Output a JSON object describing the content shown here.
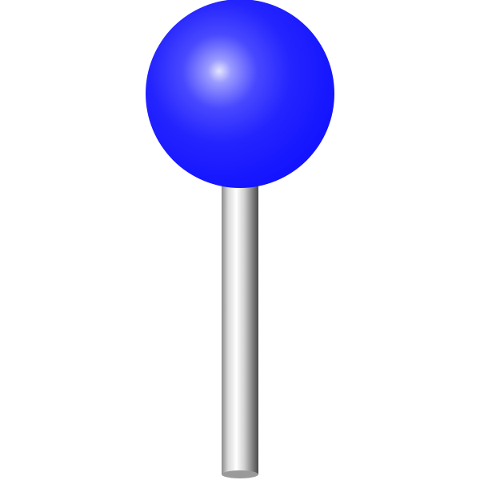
{
  "pin": {
    "head_color": "#1414ff",
    "head_highlight_color": "#e6e6ff",
    "head_shadow_color": "#0000c8",
    "needle_light_color": "#ffffff",
    "needle_dark_color": "#4a4a4a",
    "icon": "map-pin-icon"
  }
}
